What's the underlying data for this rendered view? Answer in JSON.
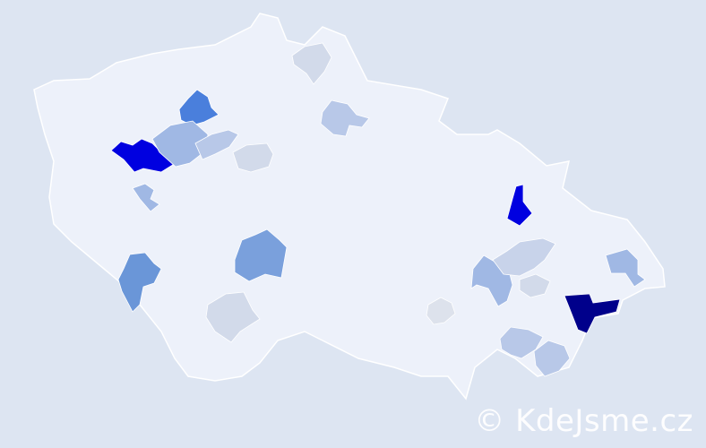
{
  "map": {
    "country_fill": "#edf1fa",
    "border_color": "#ffffff",
    "background": "#dde5f2",
    "highlighted_regions": [
      {
        "color": "#00008b"
      },
      {
        "color": "#0000e0"
      },
      {
        "color": "#0000e0"
      },
      {
        "color": "#4a7fdc"
      },
      {
        "color": "#7aa0dc"
      },
      {
        "color": "#6a96d8"
      },
      {
        "color": "#a0b8e4"
      },
      {
        "color": "#a0b8e4"
      },
      {
        "color": "#a0b8e4"
      },
      {
        "color": "#a0b8e4"
      },
      {
        "color": "#b8c8e8"
      },
      {
        "color": "#b8c8e8"
      },
      {
        "color": "#b8c8e8"
      },
      {
        "color": "#b8c8e8"
      },
      {
        "color": "#d2daea"
      },
      {
        "color": "#d2daea"
      },
      {
        "color": "#d2daea"
      },
      {
        "color": "#c8d3ea"
      },
      {
        "color": "#d2daea"
      },
      {
        "color": "#dde2ec"
      }
    ]
  },
  "watermark": {
    "text": "© KdeJsme.cz"
  }
}
